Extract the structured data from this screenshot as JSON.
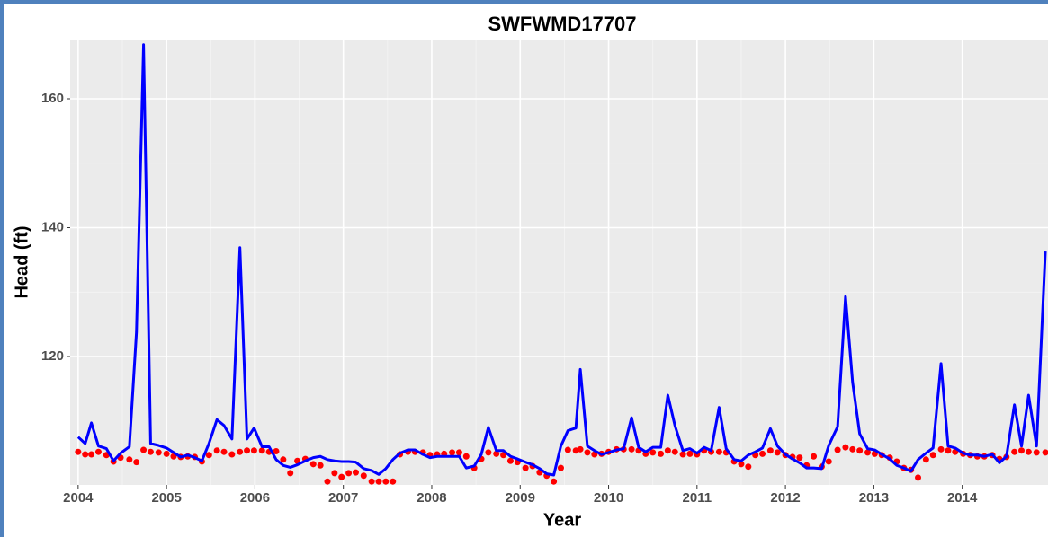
{
  "chart_data": {
    "type": "line",
    "title": "SWFWMD17707",
    "xlabel": "Year",
    "ylabel": "Head (ft)",
    "x": [
      2004.0,
      2004.08,
      2004.15,
      2004.23,
      2004.32,
      2004.4,
      2004.48,
      2004.58,
      2004.66,
      2004.74,
      2004.82,
      2004.91,
      2005.0,
      2005.08,
      2005.16,
      2005.24,
      2005.32,
      2005.4,
      2005.48,
      2005.57,
      2005.65,
      2005.74,
      2005.83,
      2005.91,
      2005.99,
      2006.08,
      2006.16,
      2006.24,
      2006.32,
      2006.4,
      2006.48,
      2006.57,
      2006.66,
      2006.74,
      2006.82,
      2006.9,
      2006.98,
      2007.06,
      2007.14,
      2007.23,
      2007.32,
      2007.4,
      2007.48,
      2007.56,
      2007.64,
      2007.73,
      2007.81,
      2007.9,
      2007.98,
      2008.06,
      2008.14,
      2008.23,
      2008.31,
      2008.39,
      2008.48,
      2008.56,
      2008.64,
      2008.73,
      2008.81,
      2008.89,
      2008.97,
      2009.06,
      2009.14,
      2009.22,
      2009.3,
      2009.38,
      2009.46,
      2009.54,
      2009.63,
      2009.68,
      2009.76,
      2009.84,
      2009.92,
      2010.0,
      2010.09,
      2010.17,
      2010.26,
      2010.34,
      2010.42,
      2010.5,
      2010.59,
      2010.67,
      2010.75,
      2010.84,
      2010.92,
      2011.0,
      2011.08,
      2011.16,
      2011.25,
      2011.33,
      2011.42,
      2011.5,
      2011.58,
      2011.66,
      2011.74,
      2011.83,
      2011.91,
      2012.0,
      2012.08,
      2012.16,
      2012.24,
      2012.32,
      2012.41,
      2012.49,
      2012.59,
      2012.68,
      2012.76,
      2012.84,
      2012.93,
      2013.01,
      2013.09,
      2013.18,
      2013.26,
      2013.34,
      2013.42,
      2013.5,
      2013.59,
      2013.67,
      2013.76,
      2013.84,
      2013.92,
      2014.01,
      2014.09,
      2014.17,
      2014.25,
      2014.34,
      2014.42,
      2014.5,
      2014.59,
      2014.67,
      2014.75,
      2014.84,
      2014.94
    ],
    "series": [
      {
        "kind": "line",
        "color": "#0000ff",
        "values": [
          107.5,
          106.5,
          109.7,
          106.1,
          105.7,
          103.8,
          105,
          106,
          123.8,
          168.4,
          106.5,
          106.2,
          105.8,
          105.1,
          104.4,
          104.7,
          104.3,
          103.8,
          106.5,
          110.2,
          109.3,
          107.2,
          136.9,
          107.2,
          108.9,
          106,
          106,
          104,
          103.1,
          102.8,
          103.2,
          103.8,
          104.3,
          104.5,
          104,
          103.8,
          103.7,
          103.7,
          103.6,
          102.6,
          102.3,
          101.7,
          102.6,
          104,
          105,
          105.5,
          105.5,
          104.8,
          104.3,
          104.5,
          104.5,
          104.5,
          104.5,
          102.7,
          103,
          104.8,
          109,
          105.4,
          105.4,
          104.5,
          104.1,
          103.6,
          103.2,
          102.6,
          101.8,
          101.6,
          106.1,
          108.5,
          108.9,
          118,
          106.1,
          105.4,
          104.8,
          105.1,
          105.5,
          105.7,
          110.5,
          105.9,
          105.2,
          105.9,
          105.9,
          114,
          109.3,
          105.4,
          105.7,
          105,
          105.9,
          105.4,
          112.1,
          105.7,
          104,
          103.8,
          104.7,
          105.2,
          105.8,
          108.8,
          106.1,
          104.8,
          104.1,
          103.5,
          102.7,
          102.7,
          102.6,
          106.2,
          109.1,
          129.3,
          116,
          108,
          105.7,
          105.5,
          104.8,
          104.1,
          103.1,
          102.7,
          102.2,
          104,
          105,
          105.8,
          118.9,
          106.1,
          105.8,
          105,
          104.7,
          104.7,
          104.5,
          104.8,
          103.5,
          104.5,
          112.5,
          106.1,
          114,
          106.1,
          136.3
        ]
      },
      {
        "kind": "point",
        "color": "#ff0000",
        "values": [
          105.2,
          104.8,
          104.8,
          105.2,
          104.7,
          103.7,
          104.3,
          104.0,
          103.6,
          105.5,
          105.2,
          105.1,
          104.9,
          104.5,
          104.4,
          104.5,
          104.4,
          103.7,
          104.7,
          105.4,
          105.2,
          104.8,
          105.2,
          105.4,
          105.4,
          105.4,
          105.2,
          105.3,
          104.0,
          101.9,
          103.8,
          104.1,
          103.3,
          103.1,
          100.6,
          101.9,
          101.3,
          101.9,
          102.0,
          101.5,
          100.6,
          100.6,
          100.6,
          100.6,
          104.8,
          105.2,
          105.2,
          105.1,
          104.7,
          104.8,
          104.9,
          105.1,
          105.1,
          104.5,
          102.7,
          104.1,
          105.1,
          104.9,
          104.7,
          103.8,
          103.6,
          102.7,
          103.0,
          102.0,
          101.5,
          100.6,
          102.7,
          105.5,
          105.4,
          105.6,
          105.1,
          104.8,
          104.9,
          105.2,
          105.6,
          105.6,
          105.6,
          105.4,
          104.9,
          105.1,
          104.9,
          105.4,
          105.2,
          104.8,
          104.9,
          104.8,
          105.4,
          105.2,
          105.2,
          105.1,
          103.7,
          103.3,
          102.9,
          104.7,
          104.9,
          105.4,
          105.1,
          104.7,
          104.4,
          104.3,
          103.1,
          104.5,
          102.9,
          103.7,
          105.5,
          105.9,
          105.6,
          105.4,
          105.1,
          104.9,
          104.7,
          104.3,
          103.7,
          102.7,
          102.4,
          101.2,
          104.0,
          104.7,
          105.6,
          105.4,
          105.2,
          104.9,
          104.7,
          104.5,
          104.5,
          104.7,
          104.1,
          104.4,
          105.2,
          105.4,
          105.2,
          105.1,
          105.1
        ]
      }
    ],
    "xlim": [
      2003.91,
      2014.97
    ],
    "xticks": [
      2004,
      2005,
      2006,
      2007,
      2008,
      2009,
      2010,
      2011,
      2012,
      2013,
      2014
    ],
    "ylim": [
      100.07,
      169.06
    ],
    "yticks": [
      120,
      140,
      160
    ],
    "grid": true
  }
}
